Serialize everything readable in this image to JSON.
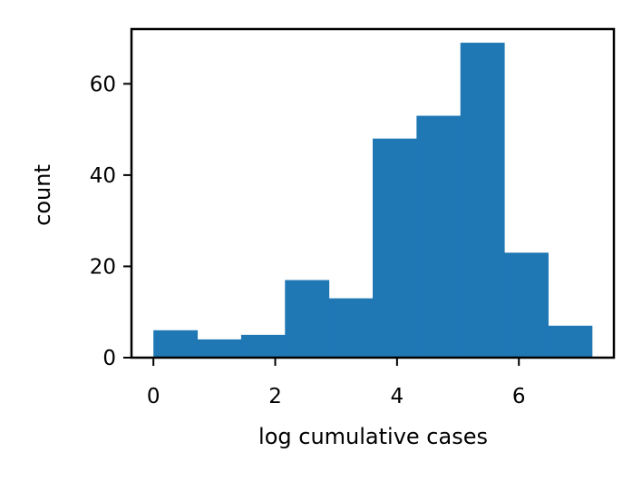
{
  "chart_data": {
    "type": "bar",
    "title": "",
    "xlabel": "log cumulative cases",
    "ylabel": "count",
    "bin_edges": [
      0.0,
      0.72,
      1.44,
      2.16,
      2.88,
      3.6,
      4.32,
      5.04,
      5.76,
      6.48,
      7.2
    ],
    "values": [
      6,
      4,
      5,
      17,
      13,
      48,
      53,
      69,
      23,
      7
    ],
    "xlim": [
      -0.36,
      7.56
    ],
    "ylim": [
      0,
      72
    ],
    "xticks": [
      0,
      2,
      4,
      6
    ],
    "xtick_labels": [
      "0",
      "2",
      "4",
      "6"
    ],
    "yticks": [
      0,
      20,
      40,
      60
    ],
    "ytick_labels": [
      "0",
      "20",
      "40",
      "60"
    ],
    "grid": false,
    "bar_color": "#1f77b4"
  }
}
